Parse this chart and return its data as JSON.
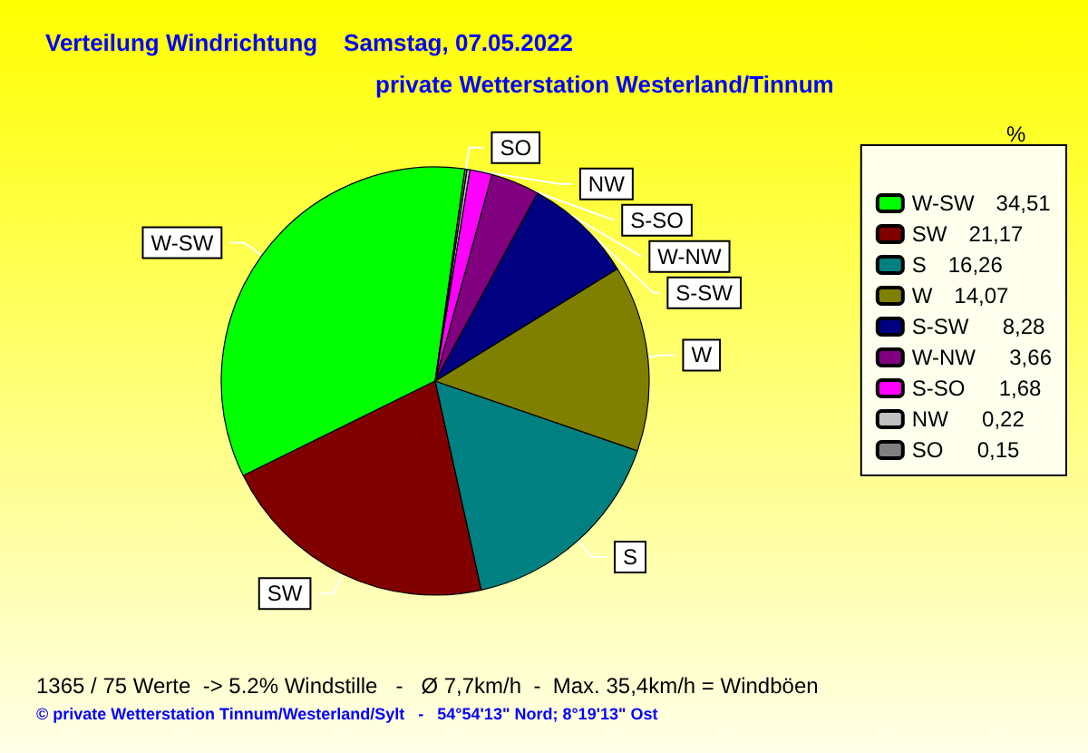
{
  "chart_data": {
    "type": "pie",
    "title": "Verteilung Windrichtung    Samstag, 07.05.2022",
    "subtitle": "private Wetterstation Westerland/Tinnum",
    "categories": [
      "W-SW",
      "SW",
      "S",
      "W",
      "S-SW",
      "W-NW",
      "S-SO",
      "NW",
      "SO"
    ],
    "values": [
      34.51,
      21.17,
      16.26,
      14.07,
      8.28,
      3.66,
      1.68,
      0.22,
      0.15
    ],
    "value_labels": [
      "34,51",
      "21,17",
      "16,26",
      "14,07",
      "8,28",
      "3,66",
      "1,68",
      "0,22",
      "0,15"
    ],
    "colors": [
      "#00ff00",
      "#800000",
      "#008080",
      "#808000",
      "#000080",
      "#800080",
      "#ff00ff",
      "#c0c0c0",
      "#808080"
    ],
    "legend": "right",
    "legend_title": "%",
    "annotations": [
      "1365 / 75 Werte  -> 5.2% Windstille   -   Ø 7,7km/h  -  Max. 35,4km/h = Windböen",
      "© private Wetterstation Tinnum/Westerland/Sylt   -   54°54'13\" Nord; 8°19'13\" Ost"
    ]
  }
}
